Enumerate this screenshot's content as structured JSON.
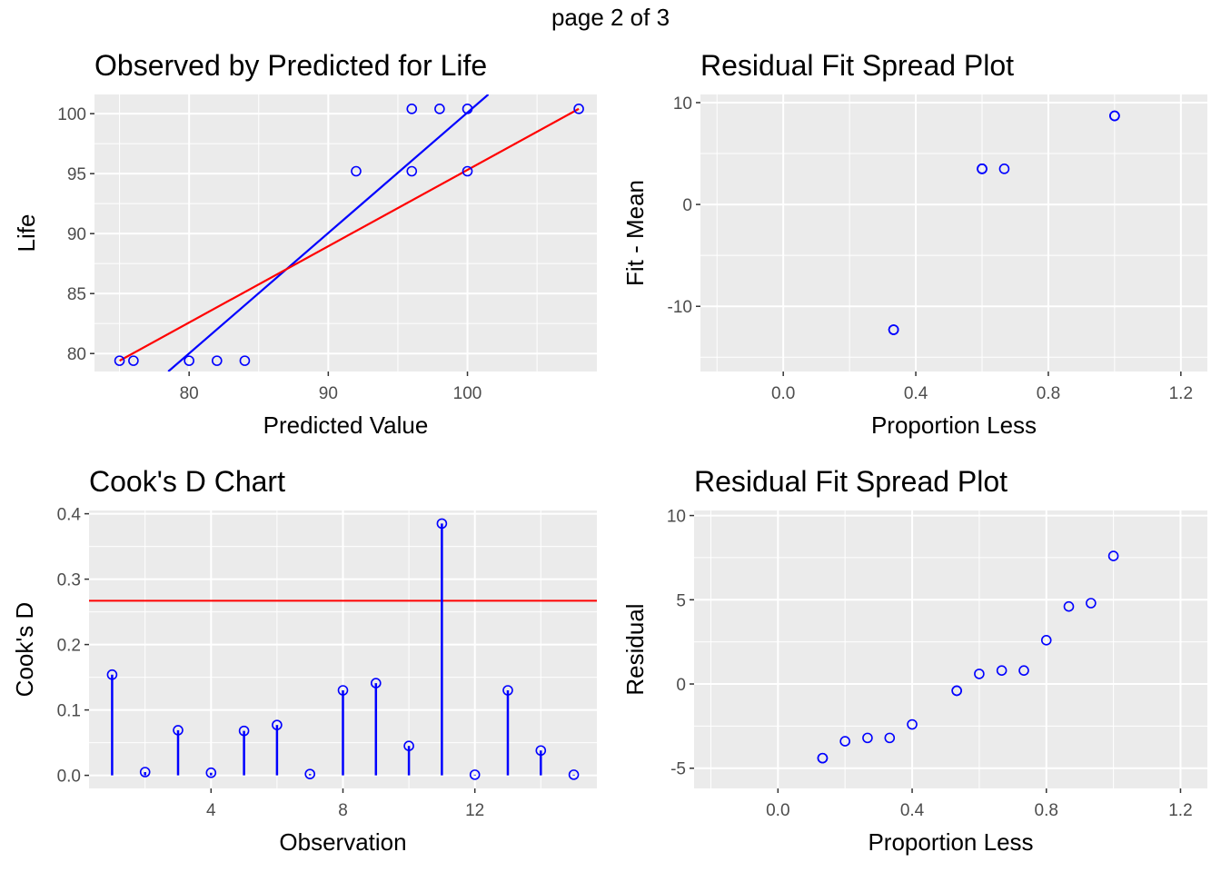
{
  "page_title": "page 2 of 3",
  "chart_data": [
    {
      "id": "obs-pred",
      "type": "scatter",
      "title": "Observed by Predicted for Life",
      "xlabel": "Predicted Value",
      "ylabel": "Life",
      "xlim": [
        73.2,
        109.3
      ],
      "ylim": [
        78.5,
        101.6
      ],
      "xticks": [
        80,
        90,
        100
      ],
      "yticks": [
        80,
        85,
        90,
        95,
        100
      ],
      "grid": true,
      "points": [
        [
          75,
          79.4
        ],
        [
          76,
          79.4
        ],
        [
          80,
          79.4
        ],
        [
          82,
          79.4
        ],
        [
          84,
          79.4
        ],
        [
          92,
          95.2
        ],
        [
          96,
          95.2
        ],
        [
          96,
          100.4
        ],
        [
          98,
          100.4
        ],
        [
          100,
          95.2
        ],
        [
          100,
          100.4
        ],
        [
          108,
          100.4
        ]
      ],
      "lines": [
        {
          "color": "#0000ff",
          "from": [
            78.5,
            78.5
          ],
          "to": [
            101.5,
            101.6
          ]
        },
        {
          "color": "#ff0000",
          "from": [
            75,
            79.4
          ],
          "to": [
            108,
            100.4
          ]
        }
      ],
      "colors": {
        "points": "#0000ff"
      }
    },
    {
      "id": "fit-spread",
      "type": "scatter",
      "title": "Residual Fit Spread Plot",
      "xlabel": "Proportion Less",
      "ylabel": "Fit - Mean",
      "xlim": [
        -0.25,
        1.28
      ],
      "ylim": [
        -16.4,
        10.8
      ],
      "xticks": [
        0.0,
        0.4,
        0.8,
        1.2
      ],
      "xtick_labels": [
        "0.0",
        "0.4",
        "0.8",
        "1.2"
      ],
      "yticks": [
        -10,
        0,
        10
      ],
      "ytick_labels": [
        "-10",
        "0",
        "10"
      ],
      "grid": true,
      "points": [
        [
          0.333,
          -12.3
        ],
        [
          0.333,
          -12.3
        ],
        [
          0.333,
          -12.3
        ],
        [
          0.6,
          3.5
        ],
        [
          0.6,
          3.5
        ],
        [
          0.6,
          3.5
        ],
        [
          0.667,
          3.5
        ],
        [
          1.0,
          8.7
        ],
        [
          1.0,
          8.7
        ],
        [
          1.0,
          8.7
        ]
      ],
      "colors": {
        "points": "#0000ff"
      }
    },
    {
      "id": "cooks-d",
      "type": "stem",
      "title": "Cook's D Chart",
      "xlabel": "Observation",
      "ylabel": "Cook's D",
      "xlim": [
        0.3,
        15.7
      ],
      "ylim": [
        -0.02,
        0.405
      ],
      "xticks": [
        4,
        8,
        12
      ],
      "yticks": [
        0.0,
        0.1,
        0.2,
        0.3,
        0.4
      ],
      "ytick_labels": [
        "0.0",
        "0.1",
        "0.2",
        "0.3",
        "0.4"
      ],
      "grid": true,
      "observations": [
        1,
        2,
        3,
        4,
        5,
        6,
        7,
        8,
        9,
        10,
        11,
        12,
        13,
        14,
        15
      ],
      "values": [
        0.154,
        0.005,
        0.069,
        0.004,
        0.068,
        0.077,
        0.002,
        0.13,
        0.141,
        0.045,
        0.385,
        0.001,
        0.13,
        0.038,
        0.001
      ],
      "threshold": 0.267,
      "colors": {
        "stems": "#0000ff",
        "threshold": "#ff0000"
      }
    },
    {
      "id": "resid-spread",
      "type": "scatter",
      "title": "Residual Fit Spread Plot",
      "xlabel": "Proportion Less",
      "ylabel": "Residual",
      "xlim": [
        -0.25,
        1.28
      ],
      "ylim": [
        -6.2,
        10.3
      ],
      "xticks": [
        0.0,
        0.4,
        0.8,
        1.2
      ],
      "xtick_labels": [
        "0.0",
        "0.4",
        "0.8",
        "1.2"
      ],
      "yticks": [
        -5,
        0,
        5,
        10
      ],
      "ytick_labels": [
        "-5",
        "0",
        "5",
        "10"
      ],
      "grid": true,
      "points": [
        [
          0.133,
          -4.4
        ],
        [
          0.133,
          -4.4
        ],
        [
          0.2,
          -3.4
        ],
        [
          0.267,
          -3.2
        ],
        [
          0.333,
          -3.2
        ],
        [
          0.4,
          -2.4
        ],
        [
          0.533,
          -0.4
        ],
        [
          0.533,
          -0.4
        ],
        [
          0.6,
          0.6
        ],
        [
          0.667,
          0.8
        ],
        [
          0.733,
          0.8
        ],
        [
          0.8,
          2.6
        ],
        [
          0.867,
          4.6
        ],
        [
          0.933,
          4.8
        ],
        [
          1.0,
          7.6
        ]
      ],
      "colors": {
        "points": "#0000ff"
      }
    }
  ]
}
